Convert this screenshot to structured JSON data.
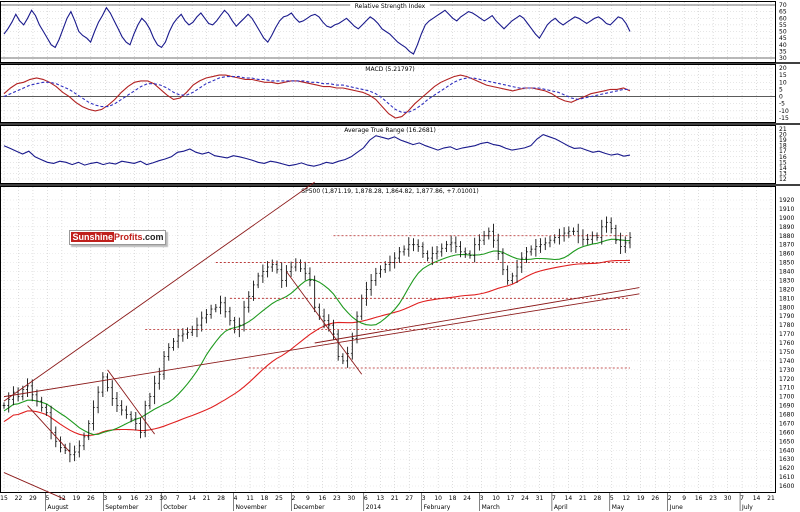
{
  "logo": {
    "brand_a": "Sunshine",
    "brand_b": "Profits",
    "brand_c": ".com"
  },
  "chart_data": [
    {
      "type": "line",
      "title": "Relative Strength Index",
      "ylim": [
        30,
        70
      ],
      "yticks": [
        70,
        65,
        60,
        55,
        50,
        45,
        40,
        35,
        30
      ],
      "levels": [
        30,
        70
      ],
      "series": [
        {
          "color": "#1a1a8c",
          "values": [
            48,
            52,
            57,
            63,
            58,
            55,
            60,
            66,
            62,
            55,
            50,
            45,
            40,
            38,
            44,
            52,
            60,
            65,
            58,
            50,
            47,
            45,
            42,
            50,
            57,
            62,
            68,
            64,
            58,
            52,
            46,
            42,
            40,
            48,
            55,
            60,
            57,
            52,
            45,
            40,
            38,
            42,
            50,
            56,
            60,
            63,
            58,
            55,
            57,
            61,
            64,
            60,
            56,
            55,
            58,
            62,
            66,
            63,
            58,
            54,
            57,
            60,
            63,
            60,
            55,
            50,
            45,
            42,
            47,
            53,
            58,
            61,
            62,
            64,
            60,
            57,
            58,
            60,
            62,
            63,
            61,
            57,
            54,
            53,
            55,
            56,
            58,
            60,
            57,
            54,
            52,
            55,
            58,
            61,
            59,
            56,
            52,
            50,
            48,
            45,
            42,
            40,
            38,
            35,
            33,
            40,
            48,
            55,
            58,
            60,
            62,
            64,
            66,
            63,
            60,
            58,
            61,
            63,
            65,
            64,
            62,
            60,
            58,
            60,
            62,
            58,
            55,
            52,
            55,
            58,
            60,
            62,
            60,
            56,
            52,
            48,
            45,
            50,
            55,
            58,
            60,
            57,
            55,
            57,
            59,
            61,
            60,
            58,
            56,
            58,
            60,
            61,
            59,
            56,
            55,
            58,
            61,
            60,
            56,
            50
          ]
        }
      ]
    },
    {
      "type": "line",
      "title": "MACD (5.21797)",
      "ylim": [
        -15,
        20
      ],
      "yticks": [
        20,
        15,
        10,
        5,
        0,
        -5,
        -10,
        -15
      ],
      "levels": [
        0
      ],
      "series": [
        {
          "color": "#b22222",
          "values": [
            2,
            6,
            9,
            10,
            12,
            13,
            12,
            10,
            7,
            3,
            0,
            -4,
            -7,
            -9,
            -10,
            -9,
            -6,
            -2,
            3,
            7,
            10,
            11,
            11,
            9,
            5,
            1,
            -2,
            -1,
            3,
            8,
            11,
            13,
            14,
            15,
            15,
            14,
            13,
            12,
            12,
            11,
            10,
            10,
            9,
            10,
            11,
            11,
            10,
            9,
            8,
            7,
            7,
            6,
            6,
            5,
            4,
            3,
            1,
            -2,
            -7,
            -12,
            -15,
            -14,
            -10,
            -5,
            -1,
            3,
            7,
            10,
            12,
            14,
            15,
            14,
            12,
            10,
            8,
            7,
            6,
            5,
            4,
            5,
            6,
            6,
            5,
            4,
            2,
            -1,
            -3,
            -4,
            -2,
            0,
            2,
            3,
            4,
            5,
            5,
            6,
            4
          ]
        },
        {
          "color": "#3030c0",
          "dashed": true,
          "values": [
            0,
            2,
            4,
            6,
            8,
            9,
            10,
            10,
            9,
            7,
            5,
            2,
            -1,
            -4,
            -6,
            -7,
            -7,
            -5,
            -2,
            1,
            4,
            7,
            9,
            9,
            8,
            6,
            3,
            1,
            1,
            3,
            6,
            9,
            11,
            13,
            14,
            14,
            14,
            13,
            13,
            12,
            12,
            11,
            11,
            11,
            11,
            11,
            11,
            10,
            10,
            9,
            9,
            8,
            8,
            7,
            6,
            5,
            4,
            2,
            -1,
            -5,
            -9,
            -11,
            -11,
            -9,
            -6,
            -2,
            1,
            4,
            7,
            10,
            12,
            13,
            13,
            12,
            11,
            10,
            9,
            8,
            7,
            6,
            6,
            6,
            6,
            5,
            4,
            3,
            1,
            -1,
            -2,
            -1,
            0,
            1,
            2,
            3,
            4,
            5,
            5
          ]
        }
      ]
    },
    {
      "type": "line",
      "title": "Average True Range (16.2681)",
      "ylim": [
        12,
        21
      ],
      "yticks": [
        21,
        20,
        19,
        18,
        17,
        16,
        15,
        14,
        13,
        12
      ],
      "series": [
        {
          "color": "#1a1a8c",
          "values": [
            18,
            17.5,
            17,
            16.5,
            17,
            16,
            15.5,
            15,
            14.8,
            15.2,
            15,
            14.6,
            15,
            14.5,
            14.8,
            15,
            14.6,
            14.9,
            14.7,
            15.2,
            15,
            14.8,
            15.2,
            14.6,
            14.9,
            15.3,
            15.6,
            16,
            16.8,
            17,
            17.4,
            16.8,
            16.5,
            16.8,
            16.2,
            16,
            15.8,
            16.2,
            16,
            15.7,
            15.4,
            15,
            14.8,
            15.2,
            15,
            14.7,
            14.4,
            14.6,
            14.9,
            14.5,
            14.3,
            14.6,
            15,
            14.8,
            15.2,
            15.5,
            16,
            16.8,
            17.6,
            19,
            19.8,
            19.5,
            19.2,
            19.6,
            19,
            18.6,
            18.2,
            18.5,
            18,
            17.6,
            17.2,
            17.6,
            17.8,
            17.3,
            17.6,
            17.8,
            18,
            18.4,
            18.6,
            18.2,
            18,
            17.5,
            17.2,
            17.4,
            17.6,
            18,
            19.2,
            20,
            19.6,
            19.2,
            18.6,
            18,
            17.5,
            17.6,
            17.2,
            16.8,
            17,
            16.6,
            16.3,
            16.5,
            16.1,
            16.3
          ]
        }
      ]
    },
    {
      "type": "line",
      "title": "SP500 (1,871.19, 1,878.28, 1,864.82, 1,877.86, +7.01001)",
      "ylim": [
        1600,
        1920
      ],
      "yticks": [
        1920,
        1910,
        1900,
        1890,
        1880,
        1870,
        1860,
        1850,
        1840,
        1830,
        1820,
        1810,
        1800,
        1790,
        1780,
        1770,
        1760,
        1750,
        1740,
        1730,
        1720,
        1710,
        1700,
        1690,
        1680,
        1670,
        1660,
        1650,
        1640,
        1630,
        1620,
        1610,
        1600
      ],
      "x_day_labels": [
        "15",
        "22",
        "29",
        "5",
        "12",
        "19",
        "26",
        "3",
        "9",
        "16",
        "23",
        "30",
        "7",
        "14",
        "21",
        "28",
        "4",
        "11",
        "18",
        "25",
        "2",
        "9",
        "16",
        "23",
        "30",
        "6",
        "13",
        "21",
        "27",
        "3",
        "10",
        "18",
        "24",
        "3",
        "10",
        "17",
        "24",
        "31",
        "7",
        "14",
        "21",
        "28",
        "5",
        "12",
        "19",
        "26",
        "2",
        "9",
        "16",
        "23",
        "30",
        "7",
        "14",
        "21"
      ],
      "x_month_labels": [
        "August",
        "September",
        "October",
        "November",
        "December",
        "2014",
        "February",
        "March",
        "April",
        "May",
        "June",
        "July"
      ],
      "close": [
        1690,
        1697,
        1705,
        1700,
        1708,
        1712,
        1702,
        1695,
        1688,
        1682,
        1660,
        1650,
        1643,
        1640,
        1635,
        1638,
        1645,
        1655,
        1670,
        1688,
        1705,
        1722,
        1710,
        1698,
        1690,
        1685,
        1680,
        1675,
        1670,
        1660,
        1690,
        1700,
        1715,
        1725,
        1745,
        1755,
        1762,
        1768,
        1770,
        1772,
        1775,
        1780,
        1788,
        1792,
        1798,
        1800,
        1805,
        1795,
        1785,
        1775,
        1780,
        1800,
        1812,
        1825,
        1835,
        1840,
        1845,
        1848,
        1842,
        1830,
        1840,
        1845,
        1850,
        1843,
        1838,
        1830,
        1800,
        1790,
        1785,
        1780,
        1770,
        1745,
        1740,
        1748,
        1765,
        1790,
        1810,
        1820,
        1830,
        1838,
        1842,
        1848,
        1850,
        1855,
        1862,
        1865,
        1870,
        1870,
        1868,
        1860,
        1855,
        1860,
        1862,
        1866,
        1870,
        1872,
        1868,
        1862,
        1860,
        1858,
        1870,
        1875,
        1880,
        1885,
        1875,
        1860,
        1842,
        1830,
        1835,
        1845,
        1855,
        1862,
        1865,
        1868,
        1870,
        1872,
        1875,
        1878,
        1880,
        1883,
        1885,
        1885,
        1880,
        1876,
        1876,
        1880,
        1878,
        1890,
        1895,
        1888,
        1875,
        1868,
        1872,
        1878
      ],
      "ma_green_color": "#1f9a1f",
      "ma_red_color": "#e02020",
      "h_levels": [
        {
          "value": 1880,
          "from_index": 70
        },
        {
          "value": 1850,
          "from_index": 45
        },
        {
          "value": 1810,
          "from_index": 48
        },
        {
          "value": 1775,
          "from_index": 30
        },
        {
          "value": 1732,
          "from_index": 52
        }
      ]
    }
  ]
}
